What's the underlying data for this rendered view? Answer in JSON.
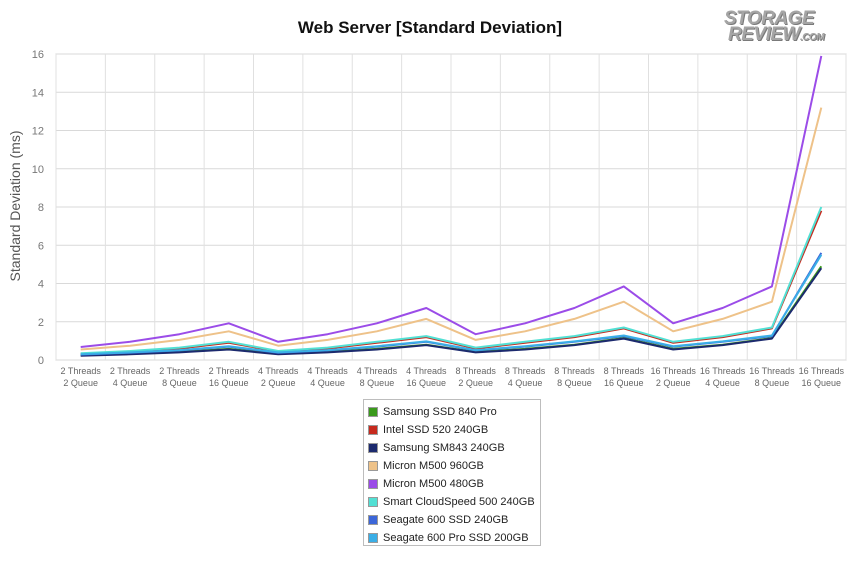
{
  "title": "Web Server [Standard Deviation]",
  "logo": {
    "line1": "STORAGE",
    "line2": "REVIEW",
    "suffix": ".COM"
  },
  "chart_data": {
    "type": "line",
    "title": "Web Server [Standard Deviation]",
    "xlabel": "",
    "ylabel": "Standard Deviation (ms)",
    "ylim": [
      0,
      16
    ],
    "yticks": [
      0,
      2,
      4,
      6,
      8,
      10,
      12,
      14,
      16
    ],
    "grid": true,
    "legend_position": "bottom-center",
    "categories": [
      [
        "2 Threads",
        "2 Queue"
      ],
      [
        "2 Threads",
        "4 Queue"
      ],
      [
        "2 Threads",
        "8 Queue"
      ],
      [
        "2 Threads",
        "16 Queue"
      ],
      [
        "4 Threads",
        "2 Queue"
      ],
      [
        "4 Threads",
        "4 Queue"
      ],
      [
        "4 Threads",
        "8 Queue"
      ],
      [
        "4 Threads",
        "16 Queue"
      ],
      [
        "8 Threads",
        "2 Queue"
      ],
      [
        "8 Threads",
        "4 Queue"
      ],
      [
        "8 Threads",
        "8 Queue"
      ],
      [
        "8 Threads",
        "16 Queue"
      ],
      [
        "16 Threads",
        "2 Queue"
      ],
      [
        "16 Threads",
        "4 Queue"
      ],
      [
        "16 Threads",
        "8 Queue"
      ],
      [
        "16 Threads",
        "16 Queue"
      ]
    ],
    "series": [
      {
        "name": "Samsung SSD 840 Pro",
        "color": "#3a9a1c",
        "values": [
          0.25,
          0.32,
          0.42,
          0.58,
          0.32,
          0.42,
          0.58,
          0.8,
          0.42,
          0.58,
          0.8,
          1.15,
          0.58,
          0.8,
          1.15,
          4.9
        ]
      },
      {
        "name": "Intel SSD 520 240GB",
        "color": "#c62a1e",
        "values": [
          0.33,
          0.45,
          0.6,
          0.9,
          0.45,
          0.6,
          0.9,
          1.2,
          0.6,
          0.9,
          1.2,
          1.65,
          0.9,
          1.2,
          1.65,
          7.8
        ]
      },
      {
        "name": "Samsung SM843 240GB",
        "color": "#1c2a6e",
        "values": [
          0.22,
          0.3,
          0.4,
          0.55,
          0.3,
          0.4,
          0.55,
          0.78,
          0.4,
          0.55,
          0.78,
          1.12,
          0.55,
          0.78,
          1.12,
          4.8
        ]
      },
      {
        "name": "Micron M500 960GB",
        "color": "#eec289",
        "values": [
          0.55,
          0.75,
          1.05,
          1.5,
          0.75,
          1.05,
          1.5,
          2.15,
          1.05,
          1.5,
          2.15,
          3.05,
          1.5,
          2.15,
          3.05,
          13.2
        ]
      },
      {
        "name": "Micron M500 480GB",
        "color": "#9b4ce8",
        "values": [
          0.68,
          0.95,
          1.35,
          1.92,
          0.95,
          1.35,
          1.92,
          2.72,
          1.35,
          1.92,
          2.72,
          3.85,
          1.92,
          2.72,
          3.85,
          15.9
        ]
      },
      {
        "name": "Smart CloudSpeed 500 240GB",
        "color": "#52e0d4",
        "values": [
          0.35,
          0.47,
          0.65,
          0.95,
          0.47,
          0.65,
          0.95,
          1.25,
          0.65,
          0.95,
          1.25,
          1.7,
          0.95,
          1.25,
          1.7,
          8.0
        ]
      },
      {
        "name": "Seagate 600 SSD 240GB",
        "color": "#3c66d8",
        "values": [
          0.28,
          0.38,
          0.5,
          0.7,
          0.38,
          0.5,
          0.7,
          0.95,
          0.5,
          0.7,
          0.95,
          1.25,
          0.7,
          0.95,
          1.25,
          5.6
        ]
      },
      {
        "name": "Seagate 600 Pro SSD 200GB",
        "color": "#3aaee6",
        "values": [
          0.3,
          0.4,
          0.52,
          0.72,
          0.4,
          0.52,
          0.72,
          0.97,
          0.52,
          0.72,
          0.97,
          1.28,
          0.72,
          0.97,
          1.28,
          5.5
        ]
      }
    ]
  }
}
